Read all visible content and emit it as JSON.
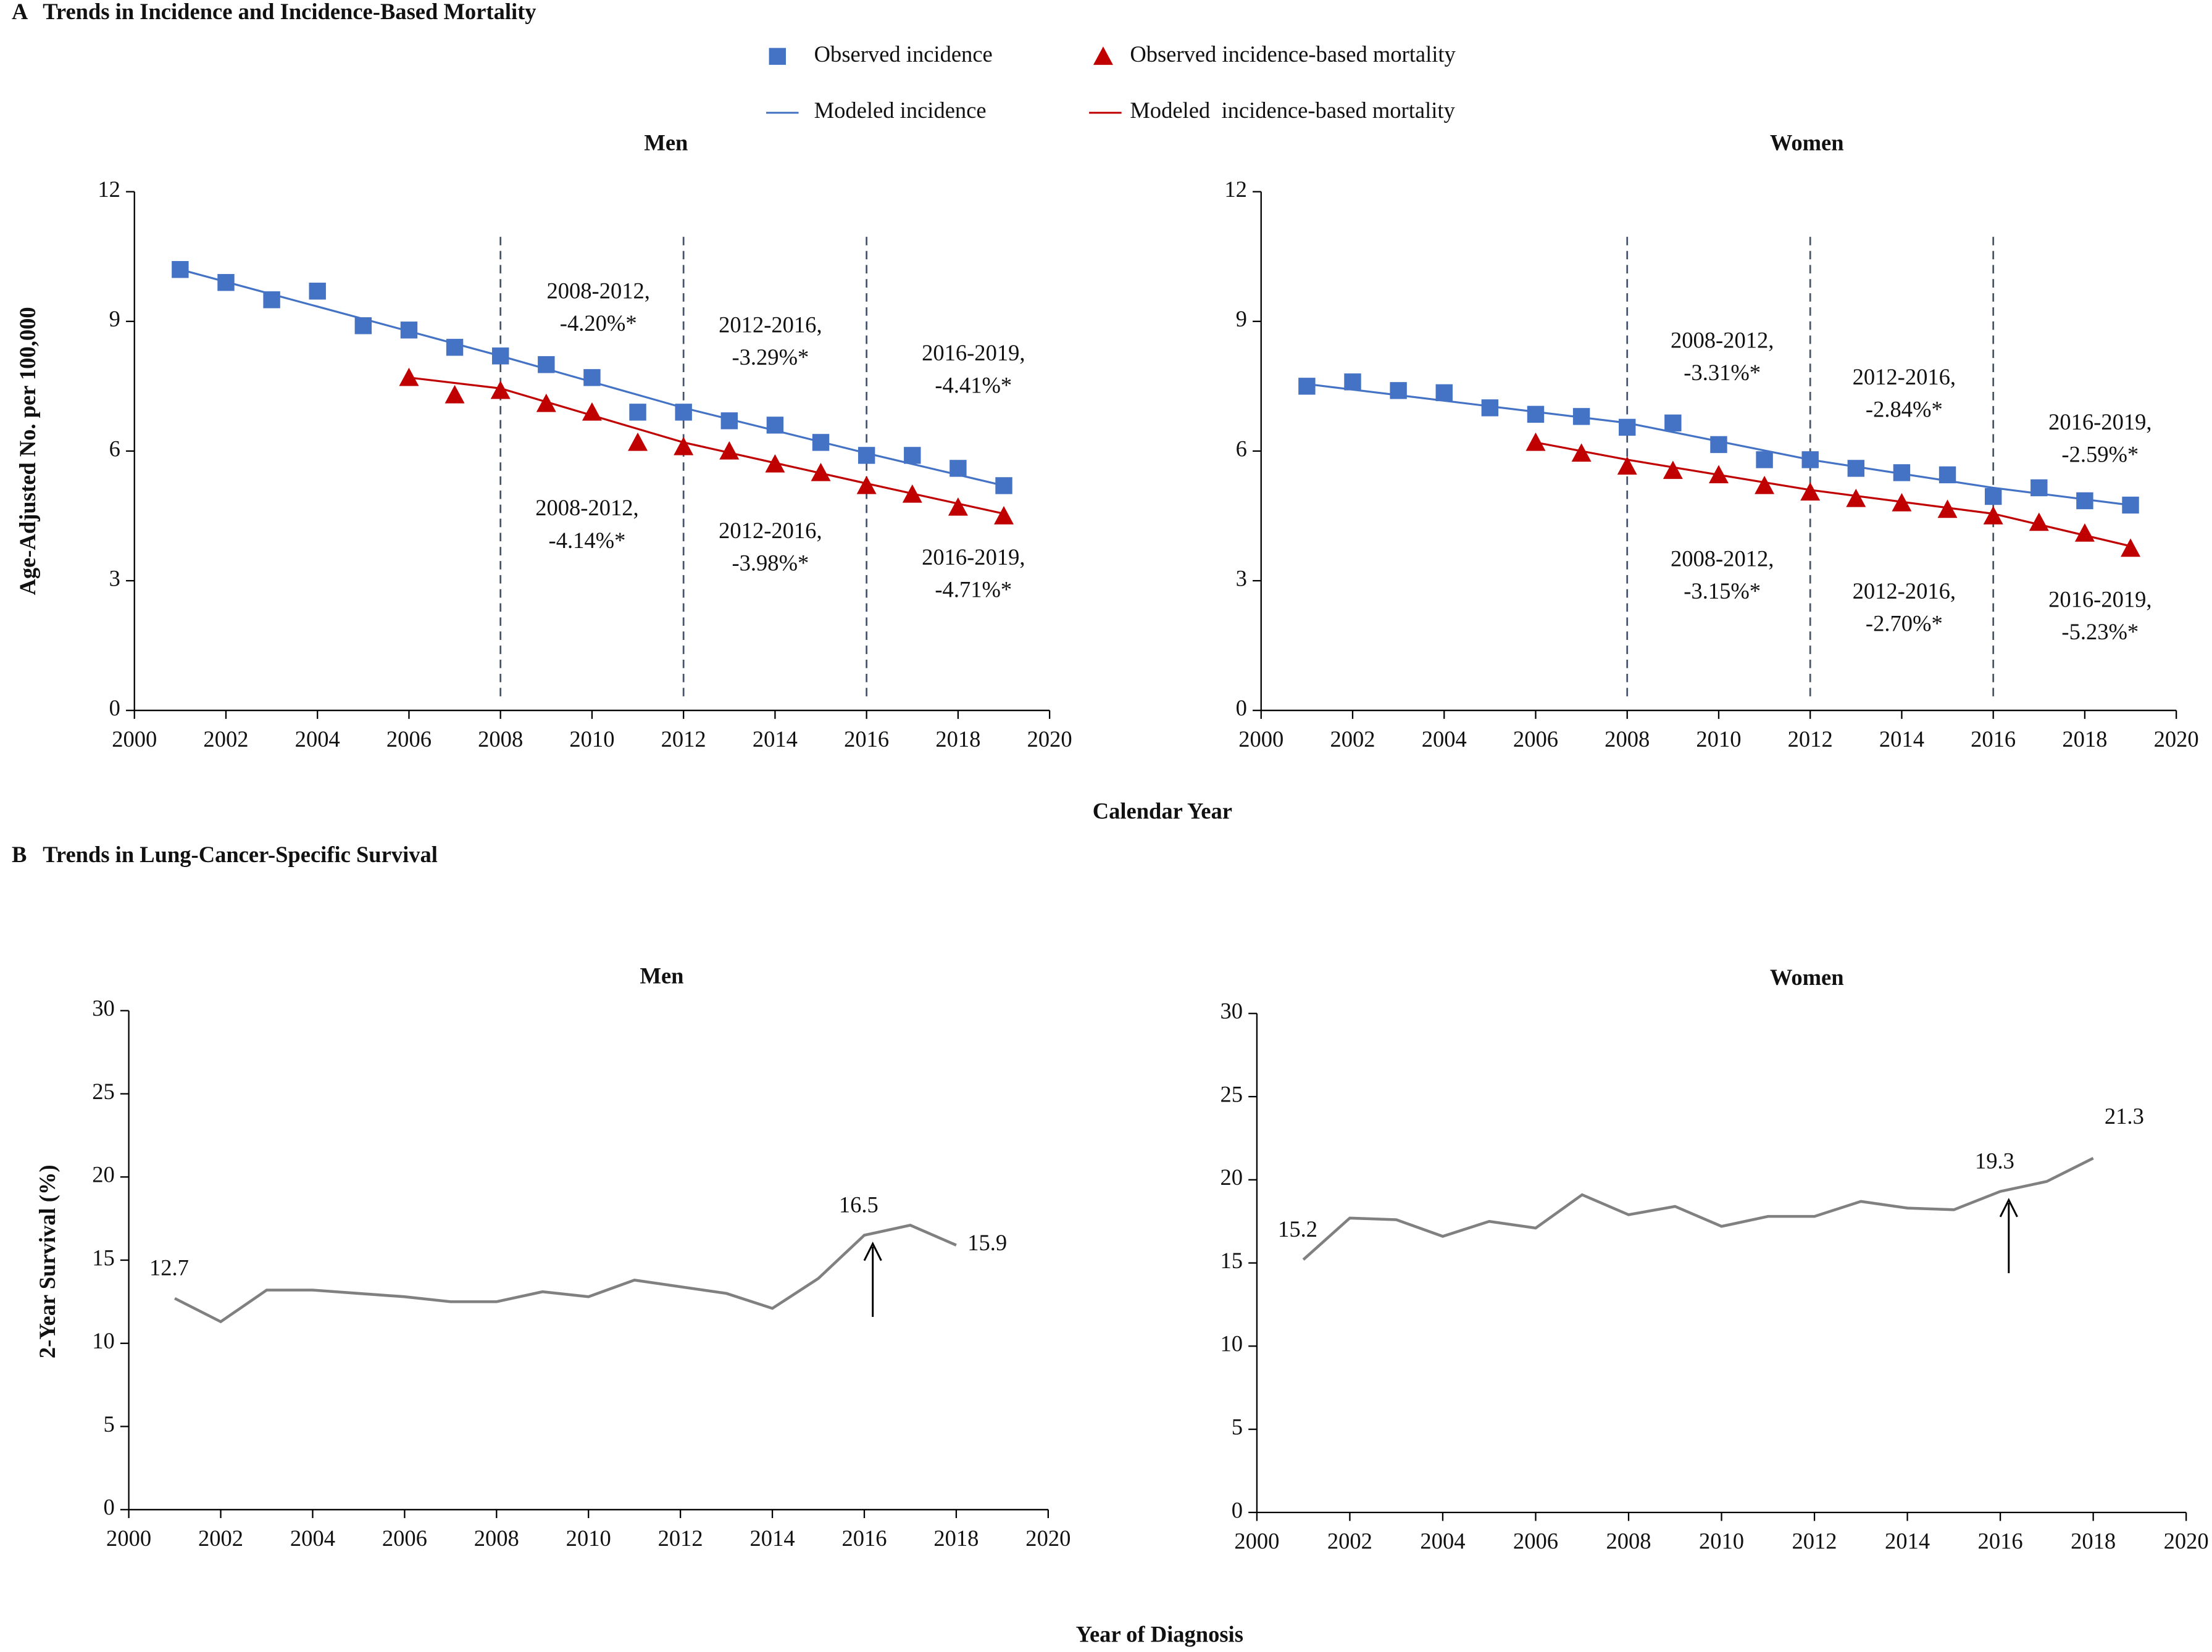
{
  "panels": [
    {
      "label": "A",
      "title": "Trends in Incidence and Incidence-Based Mortality",
      "xlabel": "Calendar Year",
      "ylabel": "Age-Adjusted No. per 100,000"
    },
    {
      "label": "B",
      "title": "Trends in Lung-Cancer-Specific Survival",
      "xlabel": "Year of Diagnosis",
      "ylabel": "2-Year Survival (%)"
    }
  ],
  "chart_data": [
    {
      "type": "line",
      "title": "Men",
      "xlim": [
        2000,
        2020
      ],
      "xticks": [
        2000,
        2002,
        2004,
        2006,
        2008,
        2010,
        2012,
        2014,
        2016,
        2018,
        2020
      ],
      "ylim": [
        0,
        12
      ],
      "yticks": [
        0,
        3,
        6,
        9,
        12
      ],
      "joinpoints": [
        2008,
        2012,
        2016
      ],
      "series": [
        {
          "name": "Observed incidence",
          "color": "#4472c4",
          "marker": "square",
          "x": [
            2001,
            2002,
            2003,
            2004,
            2005,
            2006,
            2007,
            2008,
            2009,
            2010,
            2011,
            2012,
            2013,
            2014,
            2015,
            2016,
            2017,
            2018,
            2019
          ],
          "values": [
            10.2,
            9.9,
            9.5,
            9.7,
            8.9,
            8.8,
            8.4,
            8.2,
            8.0,
            7.7,
            6.9,
            6.9,
            6.7,
            6.6,
            6.2,
            5.9,
            5.9,
            5.6,
            5.2
          ]
        },
        {
          "name": "Observed incidence-based mortality",
          "color": "#c00000",
          "marker": "triangle",
          "x": [
            2006,
            2007,
            2008,
            2009,
            2010,
            2011,
            2012,
            2013,
            2014,
            2015,
            2016,
            2017,
            2018,
            2019
          ],
          "values": [
            7.7,
            7.3,
            7.4,
            7.1,
            6.9,
            6.2,
            6.1,
            6.0,
            5.7,
            5.5,
            5.2,
            5.0,
            4.7,
            4.5
          ]
        },
        {
          "name": "Modeled incidence",
          "color": "#4472c4",
          "x": [
            2001,
            2008,
            2012,
            2016,
            2019
          ],
          "values": [
            10.2,
            8.2,
            7.0,
            5.95,
            5.2
          ]
        },
        {
          "name": "Modeled  incidence-based mortality",
          "color": "#c00000",
          "x": [
            2006,
            2008,
            2012,
            2016,
            2019
          ],
          "values": [
            7.7,
            7.45,
            6.2,
            5.25,
            4.55
          ]
        }
      ],
      "annotations": [
        [
          "2008-2012,",
          "-4.20%*"
        ],
        [
          "2012-2016,",
          "-3.29%*"
        ],
        [
          "2016-2019,",
          "-4.41%*"
        ],
        [
          "2008-2012,",
          "-4.14%*"
        ],
        [
          "2012-2016,",
          "-3.98%*"
        ],
        [
          "2016-2019,",
          "-4.71%*"
        ]
      ]
    },
    {
      "type": "line",
      "title": "Women",
      "xlim": [
        2000,
        2020
      ],
      "xticks": [
        2000,
        2002,
        2004,
        2006,
        2008,
        2010,
        2012,
        2014,
        2016,
        2018,
        2020
      ],
      "ylim": [
        0,
        12
      ],
      "yticks": [
        0,
        3,
        6,
        9,
        12
      ],
      "joinpoints": [
        2008,
        2012,
        2016
      ],
      "series": [
        {
          "color": "#4472c4",
          "marker": "square",
          "x": [
            2001,
            2002,
            2003,
            2004,
            2005,
            2006,
            2007,
            2008,
            2009,
            2010,
            2011,
            2012,
            2013,
            2014,
            2015,
            2016,
            2017,
            2018,
            2019
          ],
          "values": [
            7.5,
            7.6,
            7.4,
            7.35,
            7.0,
            6.85,
            6.8,
            6.55,
            6.65,
            6.15,
            5.8,
            5.8,
            5.6,
            5.5,
            5.45,
            4.95,
            5.15,
            4.85,
            4.75
          ]
        },
        {
          "color": "#c00000",
          "marker": "triangle",
          "x": [
            2006,
            2007,
            2008,
            2009,
            2010,
            2011,
            2012,
            2013,
            2014,
            2015,
            2016,
            2017,
            2018,
            2019
          ],
          "values": [
            6.2,
            5.95,
            5.65,
            5.55,
            5.45,
            5.2,
            5.05,
            4.9,
            4.8,
            4.65,
            4.5,
            4.35,
            4.1,
            3.75
          ]
        },
        {
          "color": "#4472c4",
          "x": [
            2001,
            2008,
            2012,
            2016,
            2019
          ],
          "values": [
            7.55,
            6.65,
            5.8,
            5.15,
            4.75
          ]
        },
        {
          "color": "#c00000",
          "x": [
            2006,
            2008,
            2012,
            2016,
            2019
          ],
          "values": [
            6.2,
            5.8,
            5.1,
            4.55,
            3.8
          ]
        }
      ],
      "annotations": [
        [
          "2008-2012,",
          "-3.31%*"
        ],
        [
          "2012-2016,",
          "-2.84%*"
        ],
        [
          "2016-2019,",
          "-2.59%*"
        ],
        [
          "2008-2012,",
          "-3.15%*"
        ],
        [
          "2012-2016,",
          "-2.70%*"
        ],
        [
          "2016-2019,",
          "-5.23%*"
        ]
      ]
    },
    {
      "type": "line",
      "title": "Men",
      "xlim": [
        2000,
        2020
      ],
      "xticks": [
        2000,
        2002,
        2004,
        2006,
        2008,
        2010,
        2012,
        2014,
        2016,
        2018,
        2020
      ],
      "ylim": [
        0,
        30
      ],
      "yticks": [
        0,
        5,
        10,
        15,
        20,
        25,
        30
      ],
      "series": [
        {
          "color": "#808080",
          "x": [
            2001,
            2002,
            2003,
            2004,
            2005,
            2006,
            2007,
            2008,
            2009,
            2010,
            2011,
            2012,
            2013,
            2014,
            2015,
            2016,
            2017,
            2018
          ],
          "values": [
            12.7,
            11.3,
            13.2,
            13.2,
            13.0,
            12.8,
            12.5,
            12.5,
            13.1,
            12.8,
            13.8,
            13.4,
            13.0,
            12.1,
            13.9,
            16.5,
            17.1,
            15.9
          ],
          "value_labels": [
            "12.7",
            null,
            null,
            null,
            null,
            null,
            null,
            null,
            null,
            null,
            null,
            null,
            null,
            null,
            null,
            "16.5",
            null,
            "15.9"
          ]
        }
      ]
    },
    {
      "type": "line",
      "title": "Women",
      "xlim": [
        2000,
        2020
      ],
      "xticks": [
        2000,
        2002,
        2004,
        2006,
        2008,
        2010,
        2012,
        2014,
        2016,
        2018,
        2020
      ],
      "ylim": [
        0,
        30
      ],
      "yticks": [
        0,
        5,
        10,
        15,
        20,
        25,
        30
      ],
      "series": [
        {
          "color": "#808080",
          "x": [
            2001,
            2002,
            2003,
            2004,
            2005,
            2006,
            2007,
            2008,
            2009,
            2010,
            2011,
            2012,
            2013,
            2014,
            2015,
            2016,
            2017,
            2018
          ],
          "values": [
            15.2,
            17.7,
            17.6,
            16.6,
            17.5,
            17.1,
            19.1,
            17.9,
            18.4,
            17.2,
            17.8,
            17.8,
            18.7,
            18.3,
            18.2,
            19.3,
            19.9,
            21.3
          ],
          "value_labels": [
            "15.2",
            null,
            null,
            null,
            null,
            null,
            null,
            null,
            null,
            null,
            null,
            null,
            null,
            null,
            null,
            "19.3",
            null,
            "21.3"
          ]
        }
      ]
    }
  ]
}
